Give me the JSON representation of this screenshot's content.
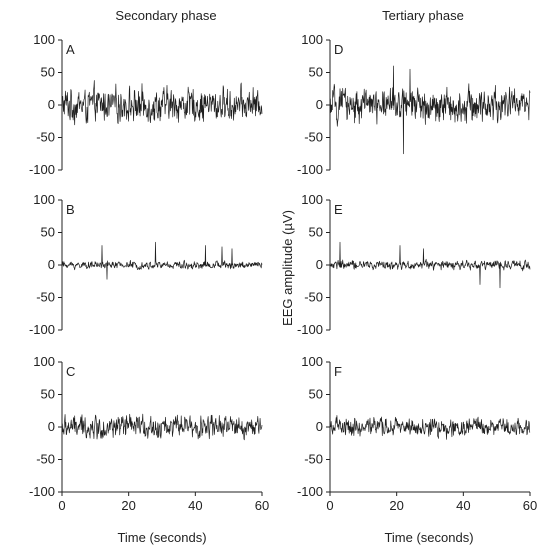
{
  "column_titles": [
    "Secondary phase",
    "Tertiary phase"
  ],
  "y_axis_label": "EEG amplitude (µV)",
  "x_axis_label": "Time (seconds)",
  "colors": {
    "trace": "#1f1f1f",
    "trace_light": "#7a7a7a",
    "axis": "#222222"
  },
  "chart_data": [
    {
      "type": "line",
      "panel": "A",
      "column": 0,
      "row": 0,
      "x_range": [
        0,
        60
      ],
      "ylim": [
        -100,
        100
      ],
      "y_ticks": [
        "100",
        "50",
        "0",
        "-50",
        "-100"
      ],
      "x_ticks": [],
      "approx_amplitude": 45,
      "spikes": []
    },
    {
      "type": "line",
      "panel": "B",
      "column": 0,
      "row": 1,
      "x_range": [
        0,
        60
      ],
      "ylim": [
        -100,
        100
      ],
      "y_ticks": [
        "100",
        "50",
        "0",
        "-50",
        "-100"
      ],
      "x_ticks": [],
      "approx_amplitude": 10,
      "spikes": [
        [
          12,
          30
        ],
        [
          13.5,
          -22
        ],
        [
          28,
          35
        ],
        [
          43,
          30
        ],
        [
          48,
          28
        ],
        [
          51,
          25
        ]
      ]
    },
    {
      "type": "line",
      "panel": "C",
      "column": 0,
      "row": 2,
      "x_range": [
        0,
        60
      ],
      "ylim": [
        -100,
        100
      ],
      "y_ticks": [
        "100",
        "50",
        "0",
        "-50",
        "-100"
      ],
      "x_ticks": [
        "0",
        "20",
        "40",
        "60"
      ],
      "approx_amplitude": 30,
      "spikes": []
    },
    {
      "type": "line",
      "panel": "D",
      "column": 1,
      "row": 0,
      "x_range": [
        0,
        60
      ],
      "ylim": [
        -100,
        100
      ],
      "y_ticks": [
        "100",
        "50",
        "0",
        "-50",
        "-100"
      ],
      "x_ticks": [],
      "approx_amplitude": 45,
      "spikes": [
        [
          19,
          60
        ],
        [
          22,
          -75
        ],
        [
          24,
          55
        ]
      ]
    },
    {
      "type": "line",
      "panel": "E",
      "column": 1,
      "row": 1,
      "x_range": [
        0,
        60
      ],
      "ylim": [
        -100,
        100
      ],
      "y_ticks": [
        "100",
        "50",
        "0",
        "-50",
        "-100"
      ],
      "x_ticks": [],
      "approx_amplitude": 12,
      "spikes": [
        [
          3,
          35
        ],
        [
          21,
          30
        ],
        [
          28,
          25
        ],
        [
          45,
          -30
        ],
        [
          51,
          -35
        ]
      ]
    },
    {
      "type": "line",
      "panel": "F",
      "column": 1,
      "row": 2,
      "x_range": [
        0,
        60
      ],
      "ylim": [
        -100,
        100
      ],
      "y_ticks": [
        "100",
        "50",
        "0",
        "-50",
        "-100"
      ],
      "x_ticks": [
        "0",
        "20",
        "40",
        "60"
      ],
      "approx_amplitude": 25,
      "spikes": []
    }
  ]
}
